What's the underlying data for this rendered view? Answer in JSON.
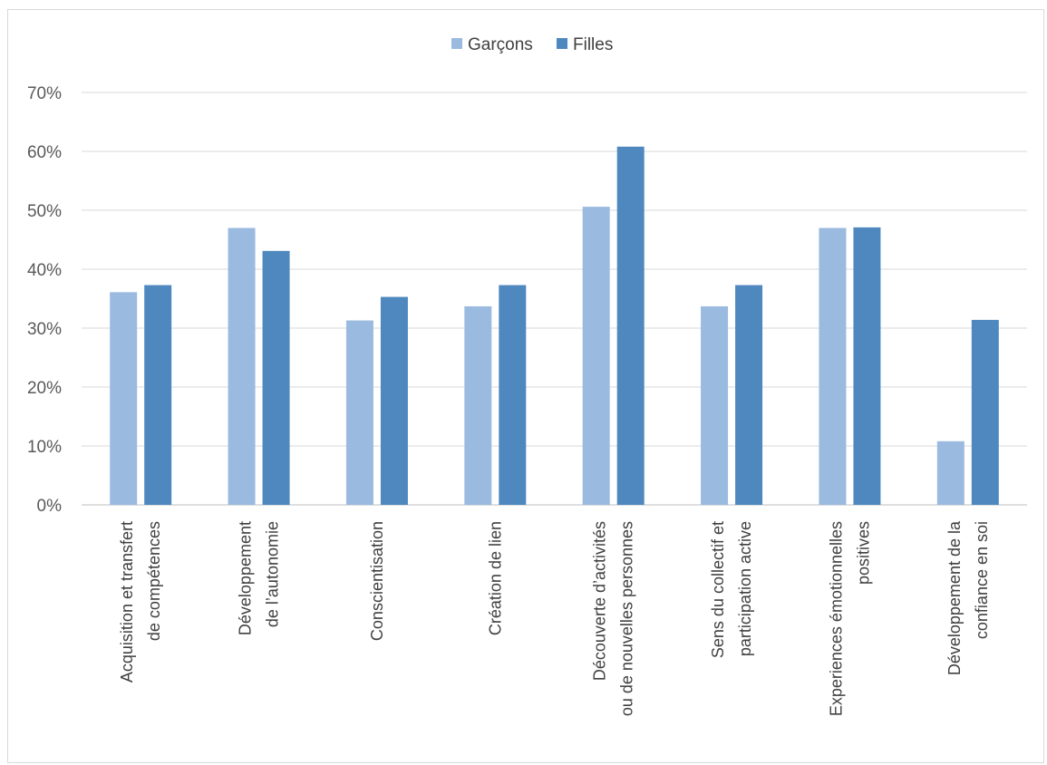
{
  "chart_data": {
    "type": "bar",
    "categories": [
      [
        "Acquisition et transfert",
        "de compétences"
      ],
      [
        "Développement",
        "de l’autonomie"
      ],
      [
        "Conscientisation"
      ],
      [
        "Création de lien"
      ],
      [
        "Découverte d’activités",
        "ou de nouvelles personnes"
      ],
      [
        "Sens du collectif et",
        "participation active"
      ],
      [
        "Experiences émotionnelles",
        "positives"
      ],
      [
        "Développement de la",
        "confiance en soi"
      ]
    ],
    "series": [
      {
        "name": "Garçons",
        "color": "#9bbae0",
        "values": [
          36.1,
          47,
          31.3,
          33.7,
          50.6,
          33.7,
          47,
          10.8
        ]
      },
      {
        "name": "Filles",
        "color": "#4f88bf",
        "values": [
          37.3,
          43.1,
          35.3,
          37.3,
          60.8,
          37.3,
          47.1,
          31.4
        ]
      }
    ],
    "yticks": [
      "0%",
      "10%",
      "20%",
      "30%",
      "40%",
      "50%",
      "60%",
      "70%"
    ],
    "ylim": [
      0,
      70
    ],
    "grid": true,
    "legend_position": "top-center"
  }
}
